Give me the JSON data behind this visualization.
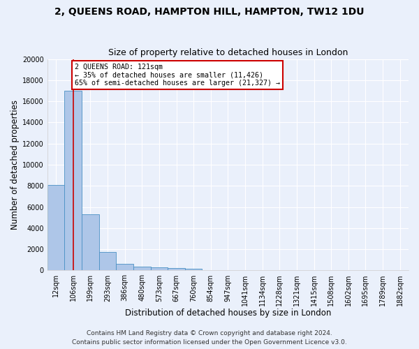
{
  "title": "2, QUEENS ROAD, HAMPTON HILL, HAMPTON, TW12 1DU",
  "subtitle": "Size of property relative to detached houses in London",
  "xlabel": "Distribution of detached houses by size in London",
  "ylabel": "Number of detached properties",
  "bar_labels": [
    "12sqm",
    "106sqm",
    "199sqm",
    "293sqm",
    "386sqm",
    "480sqm",
    "573sqm",
    "667sqm",
    "760sqm",
    "854sqm",
    "947sqm",
    "1041sqm",
    "1134sqm",
    "1228sqm",
    "1321sqm",
    "1415sqm",
    "1508sqm",
    "1602sqm",
    "1695sqm",
    "1789sqm",
    "1882sqm"
  ],
  "bar_values": [
    8100,
    17000,
    5300,
    1750,
    650,
    350,
    280,
    220,
    190,
    0,
    0,
    0,
    0,
    0,
    0,
    0,
    0,
    0,
    0,
    0,
    0
  ],
  "bar_color": "#aec6e8",
  "bar_edge_color": "#4a90c4",
  "property_line_x": 1.0,
  "annotation_title": "2 QUEENS ROAD: 121sqm",
  "annotation_line1": "← 35% of detached houses are smaller (11,426)",
  "annotation_line2": "65% of semi-detached houses are larger (21,327) →",
  "annotation_box_color": "#ffffff",
  "annotation_box_edge": "#cc0000",
  "vline_color": "#cc0000",
  "ylim": [
    0,
    20000
  ],
  "yticks": [
    0,
    2000,
    4000,
    6000,
    8000,
    10000,
    12000,
    14000,
    16000,
    18000,
    20000
  ],
  "footer1": "Contains HM Land Registry data © Crown copyright and database right 2024.",
  "footer2": "Contains public sector information licensed under the Open Government Licence v3.0.",
  "bg_color": "#eaf0fb",
  "plot_bg_color": "#eaf0fb",
  "grid_color": "#ffffff",
  "title_fontsize": 10,
  "subtitle_fontsize": 9,
  "axis_label_fontsize": 8.5,
  "tick_fontsize": 7,
  "footer_fontsize": 6.5
}
